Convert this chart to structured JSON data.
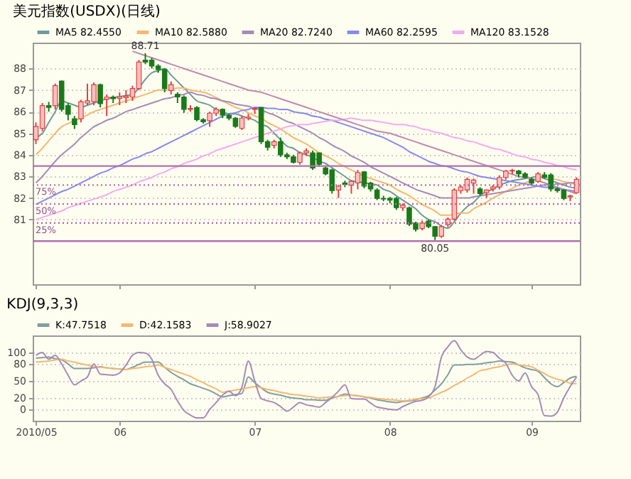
{
  "chart_data": [
    {
      "type": "candlestick",
      "title": "美元指数(USDX)(日线)",
      "categories": [
        "2010/05",
        null,
        null,
        null,
        null,
        null,
        null,
        null,
        null,
        null,
        null,
        null,
        null,
        "06",
        null,
        null,
        null,
        null,
        null,
        null,
        null,
        null,
        null,
        null,
        null,
        null,
        null,
        null,
        null,
        null,
        null,
        null,
        null,
        null,
        "07",
        null,
        null,
        null,
        null,
        null,
        null,
        null,
        null,
        null,
        null,
        null,
        null,
        null,
        null,
        null,
        null,
        null,
        null,
        null,
        null,
        "08",
        null,
        null,
        null,
        null,
        null,
        null,
        null,
        null,
        null,
        null,
        null,
        null,
        null,
        null,
        null,
        null,
        null,
        null,
        null,
        null,
        null,
        "09",
        null,
        null,
        null,
        null,
        null,
        null,
        null
      ],
      "ohlc": [
        [
          84.7,
          85.5,
          84.5,
          85.32
        ],
        [
          85.23,
          86.4,
          85.1,
          86.28
        ],
        [
          86.28,
          86.45,
          86.0,
          86.2
        ],
        [
          86.28,
          87.3,
          86.1,
          87.21
        ],
        [
          87.42,
          87.45,
          86.0,
          86.11
        ],
        [
          86.28,
          86.4,
          85.6,
          85.88
        ],
        [
          85.67,
          85.8,
          85.2,
          85.4
        ],
        [
          85.67,
          86.55,
          85.5,
          86.46
        ],
        [
          86.4,
          87.3,
          86.3,
          86.5
        ],
        [
          86.46,
          87.35,
          86.3,
          87.25
        ],
        [
          87.25,
          87.3,
          86.2,
          86.37
        ],
        [
          86.58,
          86.8,
          85.8,
          86.68
        ],
        [
          86.68,
          86.75,
          86.4,
          86.6
        ],
        [
          86.62,
          86.9,
          86.3,
          86.7
        ],
        [
          86.65,
          87.0,
          86.4,
          86.72
        ],
        [
          86.68,
          87.2,
          86.5,
          87.07
        ],
        [
          87.07,
          88.4,
          87.0,
          88.3
        ],
        [
          88.39,
          88.71,
          88.2,
          88.3
        ],
        [
          88.39,
          88.5,
          88.0,
          88.12
        ],
        [
          88.12,
          88.2,
          87.8,
          87.95
        ],
        [
          87.95,
          88.0,
          86.9,
          87.07
        ],
        [
          86.98,
          87.4,
          86.8,
          87.25
        ],
        [
          86.81,
          86.9,
          86.4,
          86.68
        ],
        [
          86.68,
          86.75,
          85.95,
          86.11
        ],
        [
          86.11,
          86.3,
          86.0,
          86.15
        ],
        [
          86.19,
          86.25,
          85.55,
          85.63
        ],
        [
          85.63,
          85.7,
          85.45,
          85.53
        ],
        [
          85.58,
          86.0,
          85.3,
          85.93
        ],
        [
          85.93,
          86.2,
          85.8,
          86.11
        ],
        [
          86.11,
          86.15,
          85.7,
          85.84
        ],
        [
          85.84,
          85.9,
          85.6,
          85.7
        ],
        [
          85.7,
          85.75,
          85.25,
          85.32
        ],
        [
          85.23,
          85.8,
          85.15,
          85.7
        ],
        [
          85.7,
          85.9,
          85.6,
          85.75
        ],
        [
          86.11,
          86.2,
          85.9,
          86.15
        ],
        [
          86.19,
          86.2,
          84.5,
          84.61
        ],
        [
          84.61,
          84.7,
          84.2,
          84.35
        ],
        [
          84.44,
          84.7,
          84.3,
          84.61
        ],
        [
          84.61,
          84.8,
          83.9,
          84.0
        ],
        [
          84.0,
          84.1,
          83.8,
          83.91
        ],
        [
          83.91,
          84.0,
          83.6,
          83.65
        ],
        [
          83.65,
          84.15,
          83.55,
          84.09
        ],
        [
          84.09,
          84.3,
          83.95,
          84.18
        ],
        [
          84.09,
          84.2,
          83.3,
          83.39
        ],
        [
          84.09,
          84.1,
          83.45,
          83.56
        ],
        [
          83.39,
          83.45,
          83.05,
          83.12
        ],
        [
          83.3,
          83.35,
          82.2,
          82.34
        ],
        [
          82.37,
          82.6,
          82.0,
          82.55
        ],
        [
          82.7,
          82.8,
          82.5,
          82.62
        ],
        [
          82.6,
          82.8,
          82.2,
          82.77
        ],
        [
          82.7,
          83.3,
          82.4,
          83.18
        ],
        [
          83.21,
          83.25,
          82.45,
          82.55
        ],
        [
          82.69,
          82.75,
          82.3,
          82.42
        ],
        [
          82.37,
          82.45,
          81.9,
          81.98
        ],
        [
          81.98,
          82.1,
          81.85,
          81.95
        ],
        [
          81.98,
          82.05,
          81.75,
          81.9
        ],
        [
          81.98,
          82.05,
          81.45,
          81.55
        ],
        [
          81.55,
          81.75,
          81.4,
          81.67
        ],
        [
          81.55,
          81.6,
          80.7,
          80.79
        ],
        [
          80.84,
          80.9,
          80.45,
          80.55
        ],
        [
          80.58,
          80.95,
          80.5,
          80.84
        ],
        [
          80.93,
          81.0,
          80.6,
          80.67
        ],
        [
          80.67,
          80.7,
          80.05,
          80.23
        ],
        [
          80.23,
          80.75,
          80.15,
          80.67
        ],
        [
          80.76,
          81.1,
          80.65,
          81.02
        ],
        [
          81.02,
          82.45,
          80.95,
          82.37
        ],
        [
          82.34,
          82.6,
          82.2,
          82.51
        ],
        [
          82.37,
          82.95,
          82.25,
          82.86
        ],
        [
          82.69,
          82.9,
          82.2,
          82.83
        ],
        [
          82.42,
          82.5,
          82.1,
          82.2
        ],
        [
          82.25,
          82.4,
          82.0,
          82.37
        ],
        [
          82.42,
          82.6,
          82.3,
          82.51
        ],
        [
          82.51,
          83.05,
          82.4,
          82.95
        ],
        [
          82.95,
          83.3,
          82.85,
          83.25
        ],
        [
          83.25,
          83.35,
          83.1,
          83.28
        ],
        [
          83.25,
          83.3,
          82.95,
          83.12
        ],
        [
          83.12,
          83.2,
          82.9,
          82.95
        ],
        [
          82.86,
          82.95,
          82.6,
          82.69
        ],
        [
          82.77,
          83.2,
          82.7,
          83.12
        ],
        [
          83.07,
          83.2,
          82.9,
          82.95
        ],
        [
          83.07,
          83.15,
          82.3,
          82.42
        ],
        [
          82.42,
          82.5,
          82.25,
          82.34
        ],
        [
          82.37,
          82.4,
          81.9,
          81.98
        ],
        [
          82.05,
          82.15,
          81.85,
          82.1
        ],
        [
          82.25,
          82.95,
          82.2,
          82.86
        ]
      ],
      "series": [
        {
          "name": "MA5 82.4550",
          "type": "line",
          "color": "#6f9a9a",
          "values": [
            84.8,
            85.0,
            85.5,
            86.0,
            86.5,
            86.4,
            86.3,
            86.2,
            86.3,
            86.4,
            86.5,
            86.6,
            86.65,
            86.7,
            86.75,
            86.8,
            87.1,
            87.5,
            87.8,
            87.9,
            88.0,
            87.7,
            87.4,
            87.1,
            86.8,
            86.5,
            86.4,
            86.3,
            86.1,
            86.0,
            85.9,
            85.9,
            85.8,
            85.7,
            85.6,
            85.4,
            85.3,
            85.0,
            84.7,
            84.4,
            84.3,
            84.1,
            84.0,
            83.9,
            83.7,
            83.6,
            83.4,
            83.2,
            83.0,
            82.8,
            82.75,
            82.7,
            82.65,
            82.6,
            82.4,
            82.3,
            82.1,
            81.9,
            81.7,
            81.5,
            81.2,
            81.0,
            80.9,
            80.7,
            80.6,
            80.9,
            81.3,
            81.6,
            81.8,
            82.1,
            82.3,
            82.4,
            82.6,
            82.7,
            82.8,
            82.85,
            82.9,
            82.95,
            83.0,
            82.9,
            82.8,
            82.7,
            82.6,
            82.5,
            82.45
          ]
        },
        {
          "name": "MA10 82.5880",
          "type": "line",
          "color": "#f5b870",
          "values": [
            84.0,
            84.3,
            84.65,
            85.0,
            85.3,
            85.45,
            85.6,
            85.7,
            85.85,
            86.0,
            86.1,
            86.2,
            86.3,
            86.4,
            86.5,
            86.6,
            86.7,
            86.8,
            86.9,
            87.0,
            87.0,
            87.05,
            87.1,
            87.1,
            87.0,
            86.95,
            86.9,
            86.8,
            86.65,
            86.5,
            86.35,
            86.2,
            86.1,
            85.95,
            85.8,
            85.7,
            85.5,
            85.35,
            85.2,
            85.0,
            84.8,
            84.65,
            84.5,
            84.3,
            84.1,
            83.95,
            83.8,
            83.6,
            83.45,
            83.3,
            83.15,
            83.0,
            82.9,
            82.8,
            82.7,
            82.6,
            82.4,
            82.25,
            82.1,
            81.9,
            81.7,
            81.55,
            81.4,
            81.2,
            81.2,
            81.25,
            81.3,
            81.3,
            81.5,
            81.65,
            81.8,
            82.0,
            82.15,
            82.3,
            82.45,
            82.6,
            82.7,
            82.8,
            82.9,
            83.0,
            82.9,
            82.85,
            82.75,
            82.7,
            82.6
          ]
        },
        {
          "name": "MA20 82.7240",
          "type": "line",
          "color": "#a58ab8",
          "values": [
            82.7,
            83.0,
            83.35,
            83.7,
            84.0,
            84.25,
            84.5,
            84.8,
            85.05,
            85.3,
            85.45,
            85.6,
            85.7,
            85.85,
            86.0,
            86.1,
            86.2,
            86.3,
            86.4,
            86.5,
            86.6,
            86.65,
            86.75,
            86.8,
            86.9,
            86.8,
            86.75,
            86.65,
            86.6,
            86.5,
            86.45,
            86.35,
            86.3,
            86.25,
            86.15,
            86.1,
            85.95,
            85.85,
            85.7,
            85.55,
            85.45,
            85.3,
            85.15,
            85.0,
            84.8,
            84.65,
            84.45,
            84.3,
            84.15,
            83.95,
            83.8,
            83.65,
            83.45,
            83.3,
            83.15,
            83.0,
            82.85,
            82.7,
            82.55,
            82.4,
            82.3,
            82.2,
            82.1,
            82.0,
            82.0,
            82.0,
            82.0,
            82.0,
            82.05,
            82.1,
            82.15,
            82.2,
            82.25,
            82.3,
            82.35,
            82.4,
            82.45,
            82.5,
            82.55,
            82.6,
            82.6,
            82.65,
            82.65,
            82.7,
            82.7
          ]
        },
        {
          "name": "MA60 82.2595",
          "type": "line",
          "color": "#8888ee",
          "values": [
            81.7,
            81.85,
            82.0,
            82.15,
            82.3,
            82.4,
            82.55,
            82.7,
            82.85,
            83.0,
            83.15,
            83.25,
            83.4,
            83.5,
            83.65,
            83.8,
            83.9,
            84.05,
            84.15,
            84.3,
            84.45,
            84.6,
            84.75,
            84.9,
            85.05,
            85.2,
            85.35,
            85.5,
            85.65,
            85.8,
            85.9,
            85.95,
            86.05,
            86.1,
            86.2,
            86.2,
            86.15,
            86.15,
            86.1,
            86.1,
            86.0,
            85.95,
            85.9,
            85.8,
            85.75,
            85.65,
            85.6,
            85.5,
            85.4,
            85.3,
            85.2,
            85.1,
            85.0,
            84.9,
            84.8,
            84.65,
            84.5,
            84.35,
            84.15,
            84.0,
            83.85,
            83.7,
            83.6,
            83.5,
            83.45,
            83.35,
            83.25,
            83.2,
            83.1,
            83.0,
            82.95,
            82.9,
            82.85,
            82.8,
            82.75,
            82.7,
            82.65,
            82.6,
            82.55,
            82.5,
            82.5,
            82.45,
            82.4,
            82.35,
            82.3
          ]
        },
        {
          "name": "MA120 83.1528",
          "type": "line",
          "color": "#f4aaf0",
          "values": [
            81.0,
            81.1,
            81.2,
            81.3,
            81.4,
            81.55,
            81.65,
            81.75,
            81.85,
            81.95,
            82.05,
            82.15,
            82.3,
            82.4,
            82.5,
            82.6,
            82.75,
            82.85,
            82.95,
            83.1,
            83.2,
            83.35,
            83.45,
            83.6,
            83.7,
            83.8,
            83.95,
            84.05,
            84.2,
            84.3,
            84.4,
            84.5,
            84.6,
            84.7,
            84.8,
            84.9,
            85.0,
            85.1,
            85.2,
            85.3,
            85.35,
            85.4,
            85.4,
            85.45,
            85.5,
            85.55,
            85.6,
            85.6,
            85.65,
            85.7,
            85.65,
            85.6,
            85.6,
            85.55,
            85.5,
            85.45,
            85.4,
            85.4,
            85.35,
            85.3,
            85.2,
            85.15,
            85.05,
            85.0,
            84.9,
            84.8,
            84.75,
            84.65,
            84.6,
            84.5,
            84.4,
            84.3,
            84.25,
            84.15,
            84.05,
            83.95,
            83.9,
            83.8,
            83.75,
            83.65,
            83.6,
            83.5,
            83.45,
            83.35,
            83.3
          ]
        },
        {
          "type": "line",
          "color": "#c08ab0",
          "values": [
            null,
            null,
            null,
            null,
            null,
            null,
            null,
            null,
            null,
            null,
            null,
            null,
            null,
            null,
            null,
            88.8,
            88.7,
            88.6,
            88.5,
            88.4,
            88.3,
            88.2,
            88.1,
            88.0,
            87.9,
            87.8,
            87.7,
            87.6,
            87.5,
            87.4,
            87.3,
            87.2,
            87.1,
            87.0,
            86.95,
            86.9,
            86.8,
            86.7,
            86.6,
            86.5,
            86.4,
            86.3,
            86.2,
            86.1,
            86.0,
            85.9,
            85.8,
            85.7,
            85.6,
            85.5,
            85.4,
            85.3,
            85.2,
            85.1,
            85.05,
            85.0,
            84.9,
            84.8,
            84.7,
            84.6,
            84.5,
            84.4,
            84.3,
            84.2,
            84.1,
            84.0,
            83.9,
            83.8,
            83.7,
            83.6,
            83.5,
            83.4,
            83.3,
            83.2,
            83.1,
            83.0,
            82.95,
            82.9,
            82.8,
            82.7,
            82.6,
            82.5,
            82.4,
            82.3,
            82.2
          ]
        }
      ],
      "ref_lines": [
        {
          "axis": "y",
          "value": 83.48,
          "color": "#b070b0",
          "line_style": "solid"
        },
        {
          "axis": "y",
          "value": 82.6,
          "color": "#b070b0",
          "line_style": "dotted"
        },
        {
          "axis": "y",
          "value": 81.72,
          "color": "#b070b0",
          "line_style": "dotted"
        },
        {
          "axis": "y",
          "value": 80.84,
          "color": "#b070b0",
          "line_style": "dotted"
        },
        {
          "axis": "y",
          "value": 80.0,
          "color": "#b070b0",
          "line_style": "solid"
        }
      ],
      "annotations": [
        {
          "text": "88.71",
          "y": 88.71
        },
        {
          "text": "80.05",
          "y": 80.05
        },
        {
          "text": "75%",
          "y": 82.6
        },
        {
          "text": "50%",
          "y": 81.72
        },
        {
          "text": "25%",
          "y": 80.84
        }
      ],
      "ylim": [
        78,
        89.2
      ],
      "yticks": [
        81,
        82,
        83,
        84,
        85,
        86,
        87,
        88
      ],
      "grid": "y",
      "legend": "top left",
      "tick_labels": "y"
    },
    {
      "type": "line",
      "title": "KDJ(9,3,3)",
      "categories": [
        "2010/05",
        null,
        null,
        null,
        null,
        null,
        null,
        null,
        null,
        null,
        null,
        null,
        null,
        "06",
        null,
        null,
        null,
        null,
        null,
        null,
        null,
        null,
        null,
        null,
        null,
        null,
        null,
        null,
        null,
        null,
        null,
        null,
        null,
        null,
        "07",
        null,
        null,
        null,
        null,
        null,
        null,
        null,
        null,
        null,
        null,
        null,
        null,
        null,
        null,
        null,
        null,
        null,
        null,
        null,
        null,
        "08",
        null,
        null,
        null,
        null,
        null,
        null,
        null,
        null,
        null,
        null,
        null,
        null,
        null,
        null,
        null,
        null,
        null,
        null,
        null,
        null,
        null,
        "09",
        null,
        null,
        null,
        null,
        null,
        null,
        null
      ],
      "series": [
        {
          "name": "K:47.7518",
          "color": "#7f9f9f",
          "values": [
            90,
            91,
            92,
            89,
            87,
            80,
            72,
            72,
            72,
            73,
            75,
            73,
            72,
            71,
            70,
            74,
            79,
            83,
            83,
            83,
            74,
            65,
            58,
            52,
            45,
            41,
            37,
            33,
            27,
            22,
            24,
            26,
            28,
            57,
            47,
            38,
            30,
            27,
            25,
            22,
            20,
            19,
            17,
            17,
            16,
            16,
            20,
            23,
            27,
            25,
            24,
            22,
            20,
            17,
            15,
            13,
            12,
            14,
            15,
            17,
            20,
            24,
            34,
            45,
            61,
            78,
            78,
            79,
            79,
            80,
            82,
            83,
            85,
            84,
            83,
            78,
            73,
            70,
            67,
            56,
            45,
            40,
            47,
            55,
            58
          ]
        },
        {
          "name": "D:42.1583",
          "color": "#f5b870",
          "values": [
            83,
            84,
            85,
            87,
            88,
            85,
            83,
            80,
            78,
            75,
            74,
            73,
            72,
            71,
            70,
            72,
            73,
            75,
            76,
            78,
            74,
            70,
            66,
            62,
            58,
            52,
            47,
            41,
            36,
            30,
            32,
            34,
            36,
            38,
            40,
            38,
            35,
            33,
            30,
            28,
            26,
            25,
            23,
            22,
            20,
            21,
            22,
            23,
            24,
            25,
            24,
            22,
            21,
            19,
            18,
            17,
            16,
            15,
            16,
            18,
            19,
            20,
            25,
            30,
            35,
            42,
            48,
            55,
            61,
            68,
            70,
            73,
            75,
            78,
            80,
            78,
            77,
            75,
            69,
            63,
            57,
            53,
            50,
            46,
            45
          ]
        },
        {
          "name": "J:58.9027",
          "color": "#a58ab8",
          "values": [
            95,
            100,
            88,
            95,
            80,
            60,
            43,
            50,
            57,
            80,
            62,
            61,
            60,
            64,
            78,
            95,
            100,
            99,
            88,
            60,
            45,
            35,
            15,
            -2,
            -10,
            -15,
            -15,
            0,
            12,
            25,
            32,
            24,
            39,
            85,
            50,
            19,
            15,
            12,
            5,
            -3,
            4,
            12,
            8,
            6,
            4,
            12,
            21,
            32,
            43,
            19,
            18,
            18,
            11,
            4,
            2,
            0,
            -1,
            5,
            10,
            14,
            16,
            22,
            40,
            92,
            110,
            121,
            105,
            92,
            88,
            95,
            102,
            100,
            90,
            81,
            60,
            50,
            64,
            40,
            26,
            -11,
            -12,
            -5,
            20,
            40,
            57
          ]
        }
      ],
      "ylim": [
        -20,
        130
      ],
      "yticks": [
        0,
        20,
        50,
        80,
        100
      ],
      "grid": "y",
      "legend": "top left"
    }
  ]
}
